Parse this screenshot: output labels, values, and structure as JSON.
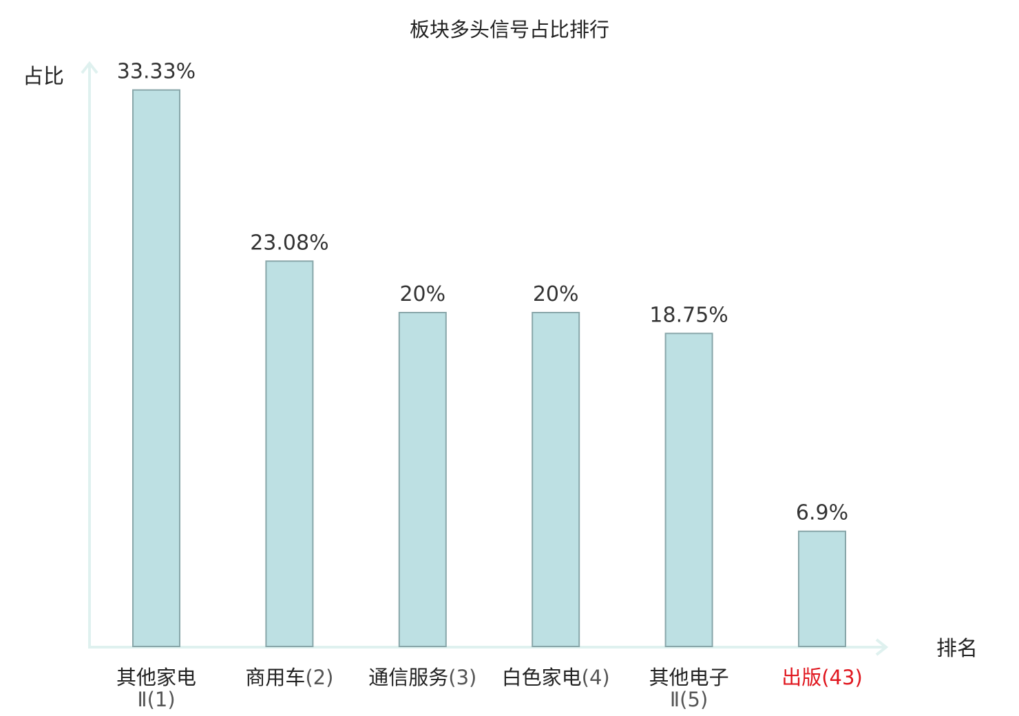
{
  "chart_data": {
    "type": "bar",
    "title": "板块多头信号占比排行",
    "ylabel": "占比",
    "xlabel": "排名",
    "ylim": [
      0,
      35
    ],
    "grid": false,
    "legend": "none",
    "categories": [
      {
        "name": "其他家电",
        "name2": "Ⅱ",
        "rank": "(1)",
        "value": 33.33,
        "label": "33.33%",
        "highlight": false
      },
      {
        "name": "商用车",
        "name2": "",
        "rank": "(2)",
        "value": 23.08,
        "label": "23.08%",
        "highlight": false
      },
      {
        "name": "通信服务",
        "name2": "",
        "rank": "(3)",
        "value": 20,
        "label": "20%",
        "highlight": false
      },
      {
        "name": "白色家电",
        "name2": "",
        "rank": "(4)",
        "value": 20,
        "label": "20%",
        "highlight": false
      },
      {
        "name": "其他电子",
        "name2": "Ⅱ",
        "rank": "(5)",
        "value": 18.75,
        "label": "18.75%",
        "highlight": false
      },
      {
        "name": "出版",
        "name2": "",
        "rank": "(43)",
        "value": 6.9,
        "label": "6.9%",
        "highlight": true
      }
    ],
    "colors": {
      "bar_fill": "#bde0e3",
      "bar_stroke": "#88a6a9",
      "axis": "#dff1ef",
      "highlight_text": "#e0161e"
    }
  }
}
